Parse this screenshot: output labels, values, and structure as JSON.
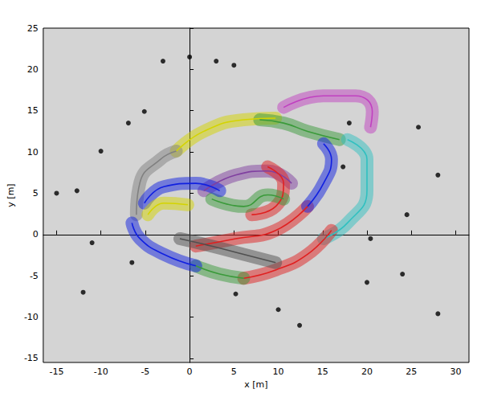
{
  "chart_data": {
    "type": "line",
    "xlabel": "x [m]",
    "ylabel": "y [m]",
    "xlim": [
      -16.5,
      31.5
    ],
    "ylim": [
      -15.5,
      25
    ],
    "xticks": [
      -15,
      -10,
      -5,
      0,
      5,
      10,
      15,
      20,
      25,
      30
    ],
    "yticks": [
      -15,
      -10,
      -5,
      0,
      5,
      10,
      15,
      20,
      25
    ],
    "grid": false,
    "series": [
      {
        "type": "line",
        "color": "#c040c0",
        "line_style": "solid",
        "x": [
          10.6,
          15.1,
          18.7,
          20.6,
          20.4
        ],
        "values": [
          15.4,
          16.8,
          16.8,
          14.9,
          13.0
        ]
      },
      {
        "type": "line",
        "color": "#d4d400",
        "line_style": "solid",
        "x": [
          -1.5,
          1.6,
          6.1,
          9.7
        ],
        "values": [
          10.1,
          12.5,
          13.9,
          14.1
        ]
      },
      {
        "type": "line",
        "color": "#808080",
        "line_style": "solid",
        "x": [
          -6.0,
          -5.6,
          -3.3,
          -1.5
        ],
        "values": [
          2.4,
          6.3,
          9.1,
          10.1
        ]
      },
      {
        "type": "line",
        "color": "#3a9a3a",
        "line_style": "solid",
        "x": [
          7.9,
          10.6,
          13.3,
          16.9
        ],
        "values": [
          13.9,
          13.5,
          12.5,
          11.5
        ]
      },
      {
        "type": "line",
        "color": "#30c0c0",
        "line_style": "solid",
        "x": [
          17.8,
          20.0,
          20.0,
          17.8,
          15.1
        ],
        "values": [
          11.5,
          9.1,
          5.3,
          1.4,
          -0.5
        ]
      },
      {
        "type": "line",
        "color": "#e02020",
        "line_style": "solid",
        "x": [
          16.0,
          13.3,
          9.7,
          6.1
        ],
        "values": [
          0.5,
          -2.4,
          -4.3,
          -5.3
        ]
      },
      {
        "type": "line",
        "color": "#3a9a3a",
        "line_style": "solid",
        "x": [
          6.1,
          3.4,
          0.7
        ],
        "values": [
          -5.3,
          -4.8,
          -3.8
        ]
      },
      {
        "type": "line",
        "color": "#1020e0",
        "line_style": "solid",
        "x": [
          0.7,
          -2.9,
          -5.6,
          -6.5
        ],
        "values": [
          -3.8,
          -2.4,
          -0.5,
          1.4
        ]
      },
      {
        "type": "line",
        "color": "#e02020",
        "line_style": "solid",
        "x": [
          0.7,
          5.2,
          9.7,
          13.3
        ],
        "values": [
          -1.4,
          -0.5,
          0.5,
          3.4
        ]
      },
      {
        "type": "line",
        "color": "#1020e0",
        "line_style": "solid",
        "x": [
          13.3,
          15.1,
          16.0,
          15.1
        ],
        "values": [
          3.4,
          6.2,
          9.1,
          11.0
        ]
      },
      {
        "type": "line",
        "color": "#8040a0",
        "line_style": "solid",
        "x": [
          1.6,
          5.2,
          8.8,
          11.5
        ],
        "values": [
          5.3,
          7.2,
          7.7,
          6.2
        ]
      },
      {
        "type": "line",
        "color": "#e02020",
        "line_style": "solid",
        "x": [
          8.8,
          10.6,
          9.7,
          7.0
        ],
        "values": [
          8.2,
          6.2,
          3.4,
          2.4
        ]
      },
      {
        "type": "line",
        "color": "#3a9a3a",
        "line_style": "solid",
        "x": [
          2.5,
          6.1,
          8.8,
          10.6
        ],
        "values": [
          4.3,
          3.4,
          4.8,
          4.3
        ]
      },
      {
        "type": "line",
        "color": "#1020e0",
        "line_style": "solid",
        "x": [
          -5.1,
          -2.9,
          0.7,
          3.4
        ],
        "values": [
          3.8,
          5.8,
          6.2,
          5.3
        ]
      },
      {
        "type": "line",
        "color": "#505050",
        "line_style": "solid",
        "x": [
          -1.1,
          2.5,
          6.1,
          9.7
        ],
        "values": [
          -0.5,
          -1.4,
          -2.4,
          -3.4
        ]
      },
      {
        "type": "line",
        "color": "#d4d400",
        "line_style": "solid",
        "x": [
          -4.7,
          -2.9,
          -0.2
        ],
        "values": [
          2.4,
          3.8,
          3.6
        ]
      },
      {
        "type": "scatter",
        "color": "#000000",
        "marker": "circle",
        "x": [
          -15,
          -12,
          -11,
          -12.7,
          -10,
          -6.9,
          -5.1,
          -6.5,
          -3,
          0,
          3,
          5,
          18,
          25.8,
          28,
          17.3,
          24.5,
          20.4,
          20,
          24,
          5.2,
          10,
          12.4,
          28
        ],
        "values": [
          5,
          -7,
          -1,
          5.3,
          10.1,
          13.5,
          14.9,
          -3.4,
          21,
          21.5,
          21,
          20.5,
          13.5,
          13,
          7.2,
          8.2,
          2.4,
          -0.5,
          -5.8,
          -4.8,
          -7.2,
          -9.1,
          -11,
          -9.6
        ]
      }
    ]
  }
}
